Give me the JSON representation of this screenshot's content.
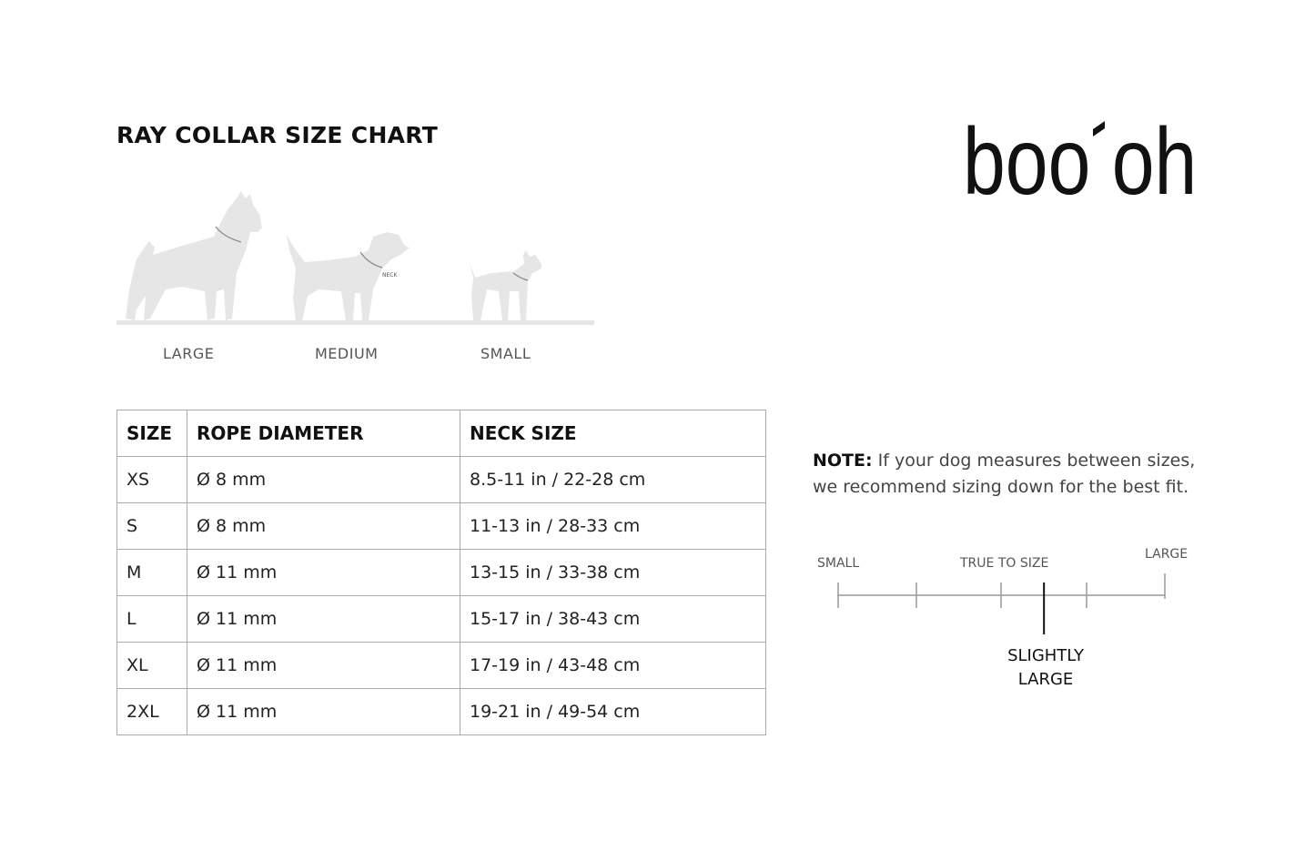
{
  "title": "RAY COLLAR SIZE CHART",
  "brand": {
    "logo_text": "boo´oh"
  },
  "dogs": {
    "labels": [
      "LARGE",
      "MEDIUM",
      "SMALL"
    ],
    "neck_label": "NECK",
    "silhouette_color": "#e6e6e6"
  },
  "table": {
    "headers": [
      "SIZE",
      "ROPE DIAMETER",
      "NECK SIZE"
    ],
    "rows": [
      [
        "XS",
        "Ø 8 mm",
        "8.5-11 in / 22-28 cm"
      ],
      [
        "S",
        "Ø 8 mm",
        "11-13 in / 28-33 cm"
      ],
      [
        "M",
        "Ø 11 mm",
        "13-15 in / 33-38 cm"
      ],
      [
        "L",
        "Ø 11 mm",
        "15-17 in / 38-43 cm"
      ],
      [
        "XL",
        "Ø 11 mm",
        "17-19 in / 43-48 cm"
      ],
      [
        "2XL",
        "Ø 11 mm",
        "19-21 in / 49-54 cm"
      ]
    ]
  },
  "note": {
    "label": "NOTE:",
    "text": " If your dog measures between sizes, we recommend sizing down for the best fit."
  },
  "fit_scale": {
    "labels": {
      "small": "SMALL",
      "true_to_size": "TRUE TO SIZE",
      "large": "LARGE"
    },
    "value_label_1": "SLIGHTLY",
    "value_label_2": "LARGE",
    "value": 0.63
  }
}
